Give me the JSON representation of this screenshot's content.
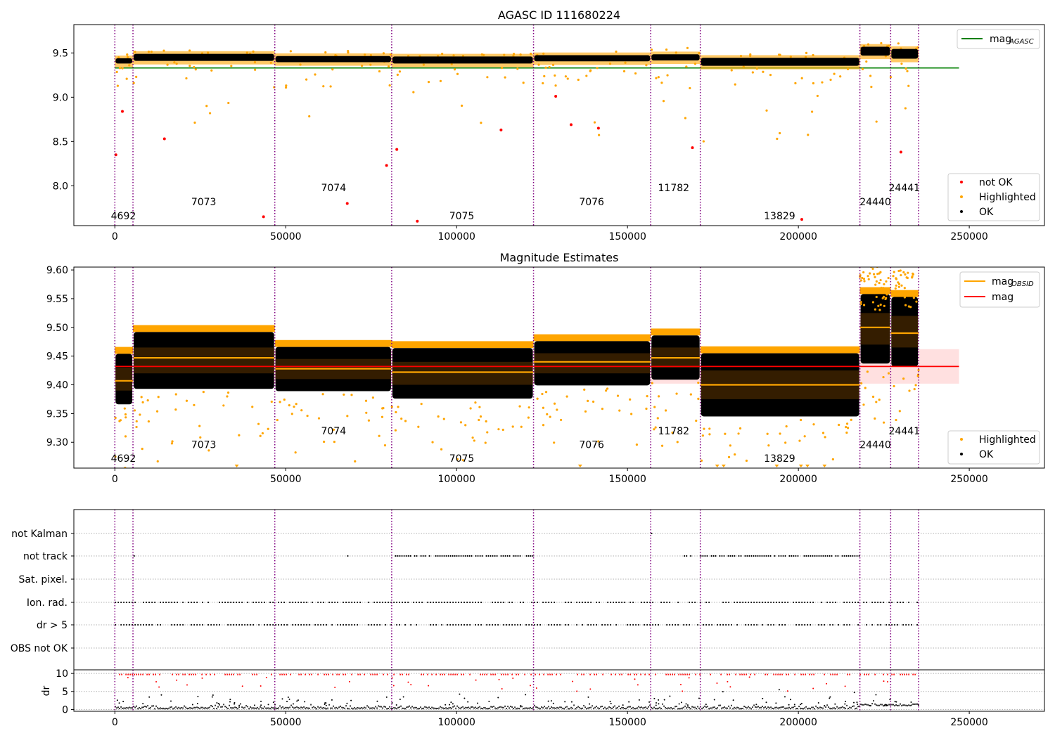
{
  "figure": {
    "panel1_title": "AGASC ID 111680224",
    "panel2_title": "Magnitude Estimates"
  },
  "chart_data": [
    {
      "type": "scatter",
      "title": "AGASC ID 111680224",
      "xlim": [
        -12000,
        272000
      ],
      "ylim": [
        7.55,
        9.82
      ],
      "xticks": [
        0,
        50000,
        100000,
        150000,
        200000,
        250000
      ],
      "yticks": [
        8.0,
        8.5,
        9.0,
        9.5
      ],
      "grid": false,
      "legend_upper": {
        "position": "top-right",
        "entries": [
          {
            "label": "mag",
            "sub": "AGASC",
            "color": "#008000"
          }
        ]
      },
      "legend_lower": {
        "position": "bottom-right",
        "entries": [
          {
            "label": "not OK",
            "color": "#ff0000"
          },
          {
            "label": "Highlighted",
            "color": "#ffa500"
          },
          {
            "label": "OK",
            "color": "#000000"
          }
        ]
      },
      "agasc_mag": {
        "value": 9.33,
        "x": [
          0,
          247000
        ],
        "color": "#008000"
      },
      "obsid_boundaries": [
        0,
        5300,
        46800,
        81000,
        122500,
        156800,
        171300,
        218000,
        227000,
        235200
      ],
      "obsid_labels": [
        {
          "text": "4692",
          "x": 2500,
          "y": 7.66
        },
        {
          "text": "7073",
          "x": 26000,
          "y": 7.82
        },
        {
          "text": "7074",
          "x": 64000,
          "y": 7.98
        },
        {
          "text": "7075",
          "x": 101500,
          "y": 7.66
        },
        {
          "text": "7076",
          "x": 139500,
          "y": 7.82
        },
        {
          "text": "11782",
          "x": 163500,
          "y": 7.98
        },
        {
          "text": "13829",
          "x": 194500,
          "y": 7.66
        },
        {
          "text": "24440",
          "x": 222500,
          "y": 7.82
        },
        {
          "text": "24441",
          "x": 231000,
          "y": 7.98
        }
      ],
      "ok_bands": [
        {
          "x0": 0,
          "x1": 5300,
          "center": 9.41,
          "half": 0.03
        },
        {
          "x0": 5300,
          "x1": 46800,
          "center": 9.45,
          "half": 0.04
        },
        {
          "x0": 46800,
          "x1": 81000,
          "center": 9.43,
          "half": 0.035
        },
        {
          "x0": 81000,
          "x1": 122500,
          "center": 9.42,
          "half": 0.04
        },
        {
          "x0": 122500,
          "x1": 156800,
          "center": 9.44,
          "half": 0.035
        },
        {
          "x0": 156800,
          "x1": 171300,
          "center": 9.45,
          "half": 0.035
        },
        {
          "x0": 171300,
          "x1": 218000,
          "center": 9.4,
          "half": 0.045
        },
        {
          "x0": 218000,
          "x1": 227000,
          "center": 9.52,
          "half": 0.05
        },
        {
          "x0": 227000,
          "x1": 235200,
          "center": 9.49,
          "half": 0.055
        }
      ],
      "not_ok_points": [
        {
          "x": 300,
          "y": 8.35
        },
        {
          "x": 2200,
          "y": 8.84
        },
        {
          "x": 14500,
          "y": 8.53
        },
        {
          "x": 43500,
          "y": 7.65
        },
        {
          "x": 68000,
          "y": 7.8
        },
        {
          "x": 79500,
          "y": 8.23
        },
        {
          "x": 82500,
          "y": 8.41
        },
        {
          "x": 88500,
          "y": 7.6
        },
        {
          "x": 113000,
          "y": 8.63
        },
        {
          "x": 129000,
          "y": 9.01
        },
        {
          "x": 133500,
          "y": 8.69
        },
        {
          "x": 141500,
          "y": 8.65
        },
        {
          "x": 169000,
          "y": 8.43
        },
        {
          "x": 201000,
          "y": 7.62
        },
        {
          "x": 230000,
          "y": 8.38
        }
      ]
    },
    {
      "type": "scatter",
      "title": "Magnitude Estimates",
      "xlim": [
        -12000,
        272000
      ],
      "ylim": [
        9.255,
        9.605
      ],
      "xticks": [
        0,
        50000,
        100000,
        150000,
        200000,
        250000
      ],
      "yticks": [
        9.3,
        9.35,
        9.4,
        9.45,
        9.5,
        9.55,
        9.6
      ],
      "grid": false,
      "legend_upper": {
        "position": "top-right",
        "entries": [
          {
            "label": "mag",
            "sub": "OBSID",
            "color": "#ffa500"
          },
          {
            "label": "mag",
            "sub": "",
            "color": "#ff0000"
          }
        ]
      },
      "legend_lower": {
        "position": "bottom-right",
        "entries": [
          {
            "label": "Highlighted",
            "color": "#ffa500"
          },
          {
            "label": "OK",
            "color": "#000000"
          }
        ]
      },
      "mag": {
        "value": 9.432,
        "band": [
          9.402,
          9.462
        ],
        "x": [
          0,
          247000
        ],
        "color": "#ff0000"
      },
      "obsid_mags": [
        {
          "x0": 0,
          "x1": 5300,
          "mag": 9.407,
          "lo": 9.39,
          "hi": 9.43
        },
        {
          "x0": 5300,
          "x1": 46800,
          "mag": 9.447,
          "lo": 9.42,
          "hi": 9.465
        },
        {
          "x0": 46800,
          "x1": 81000,
          "mag": 9.428,
          "lo": 9.41,
          "hi": 9.445
        },
        {
          "x0": 81000,
          "x1": 122500,
          "mag": 9.422,
          "lo": 9.4,
          "hi": 9.44
        },
        {
          "x0": 122500,
          "x1": 156800,
          "mag": 9.44,
          "lo": 9.42,
          "hi": 9.455
        },
        {
          "x0": 156800,
          "x1": 171300,
          "mag": 9.447,
          "lo": 9.43,
          "hi": 9.465
        },
        {
          "x0": 171300,
          "x1": 218000,
          "mag": 9.4,
          "lo": 9.375,
          "hi": 9.425
        },
        {
          "x0": 218000,
          "x1": 227000,
          "mag": 9.5,
          "lo": 9.47,
          "hi": 9.525
        },
        {
          "x0": 227000,
          "x1": 235200,
          "mag": 9.49,
          "lo": 9.465,
          "hi": 9.52
        }
      ],
      "obsid_labels": [
        {
          "text": "4692",
          "x": 2500,
          "y": 9.272
        },
        {
          "text": "7073",
          "x": 26000,
          "y": 9.296
        },
        {
          "text": "7074",
          "x": 64000,
          "y": 9.32
        },
        {
          "text": "7075",
          "x": 101500,
          "y": 9.272
        },
        {
          "text": "7076",
          "x": 139500,
          "y": 9.296
        },
        {
          "text": "11782",
          "x": 163500,
          "y": 9.32
        },
        {
          "text": "13829",
          "x": 194500,
          "y": 9.272
        },
        {
          "text": "24440",
          "x": 222500,
          "y": 9.296
        },
        {
          "text": "24441",
          "x": 231000,
          "y": 9.32
        }
      ]
    },
    {
      "type": "scatter",
      "title": "",
      "xlim": [
        -12000,
        272000
      ],
      "flag_rows": [
        "not Kalman",
        "not track",
        "Sat. pixel.",
        "Ion. rad.",
        "dr > 5",
        "OBS not OK"
      ],
      "flag_segments": [
        {
          "row": "not Kalman",
          "ranges": [
            [
              156900,
              157100
            ],
            [
              217900,
              218100
            ]
          ]
        },
        {
          "row": "not track",
          "ranges": [
            [
              5500,
              6000
            ],
            [
              68000,
              68300
            ],
            [
              82000,
              122500
            ],
            [
              166500,
              168500
            ],
            [
              171300,
              218000
            ]
          ]
        },
        {
          "row": "Sat. pixel.",
          "ranges": [
            [
              96800,
              97100
            ]
          ]
        },
        {
          "row": "Ion. rad.",
          "ranges": [
            [
              0,
              235200
            ]
          ]
        },
        {
          "row": "dr > 5",
          "ranges": [
            [
              0,
              235200
            ]
          ]
        }
      ],
      "dr_panel": {
        "ylabel": "dr",
        "ylim": [
          -0.5,
          11
        ],
        "yticks": [
          0,
          5,
          10
        ],
        "grid": true,
        "red_level": 9.7
      }
    }
  ],
  "ids": {
    "obsids": [
      "4692",
      "7073",
      "7074",
      "7075",
      "7076",
      "11782",
      "13829",
      "24440",
      "24441"
    ]
  }
}
